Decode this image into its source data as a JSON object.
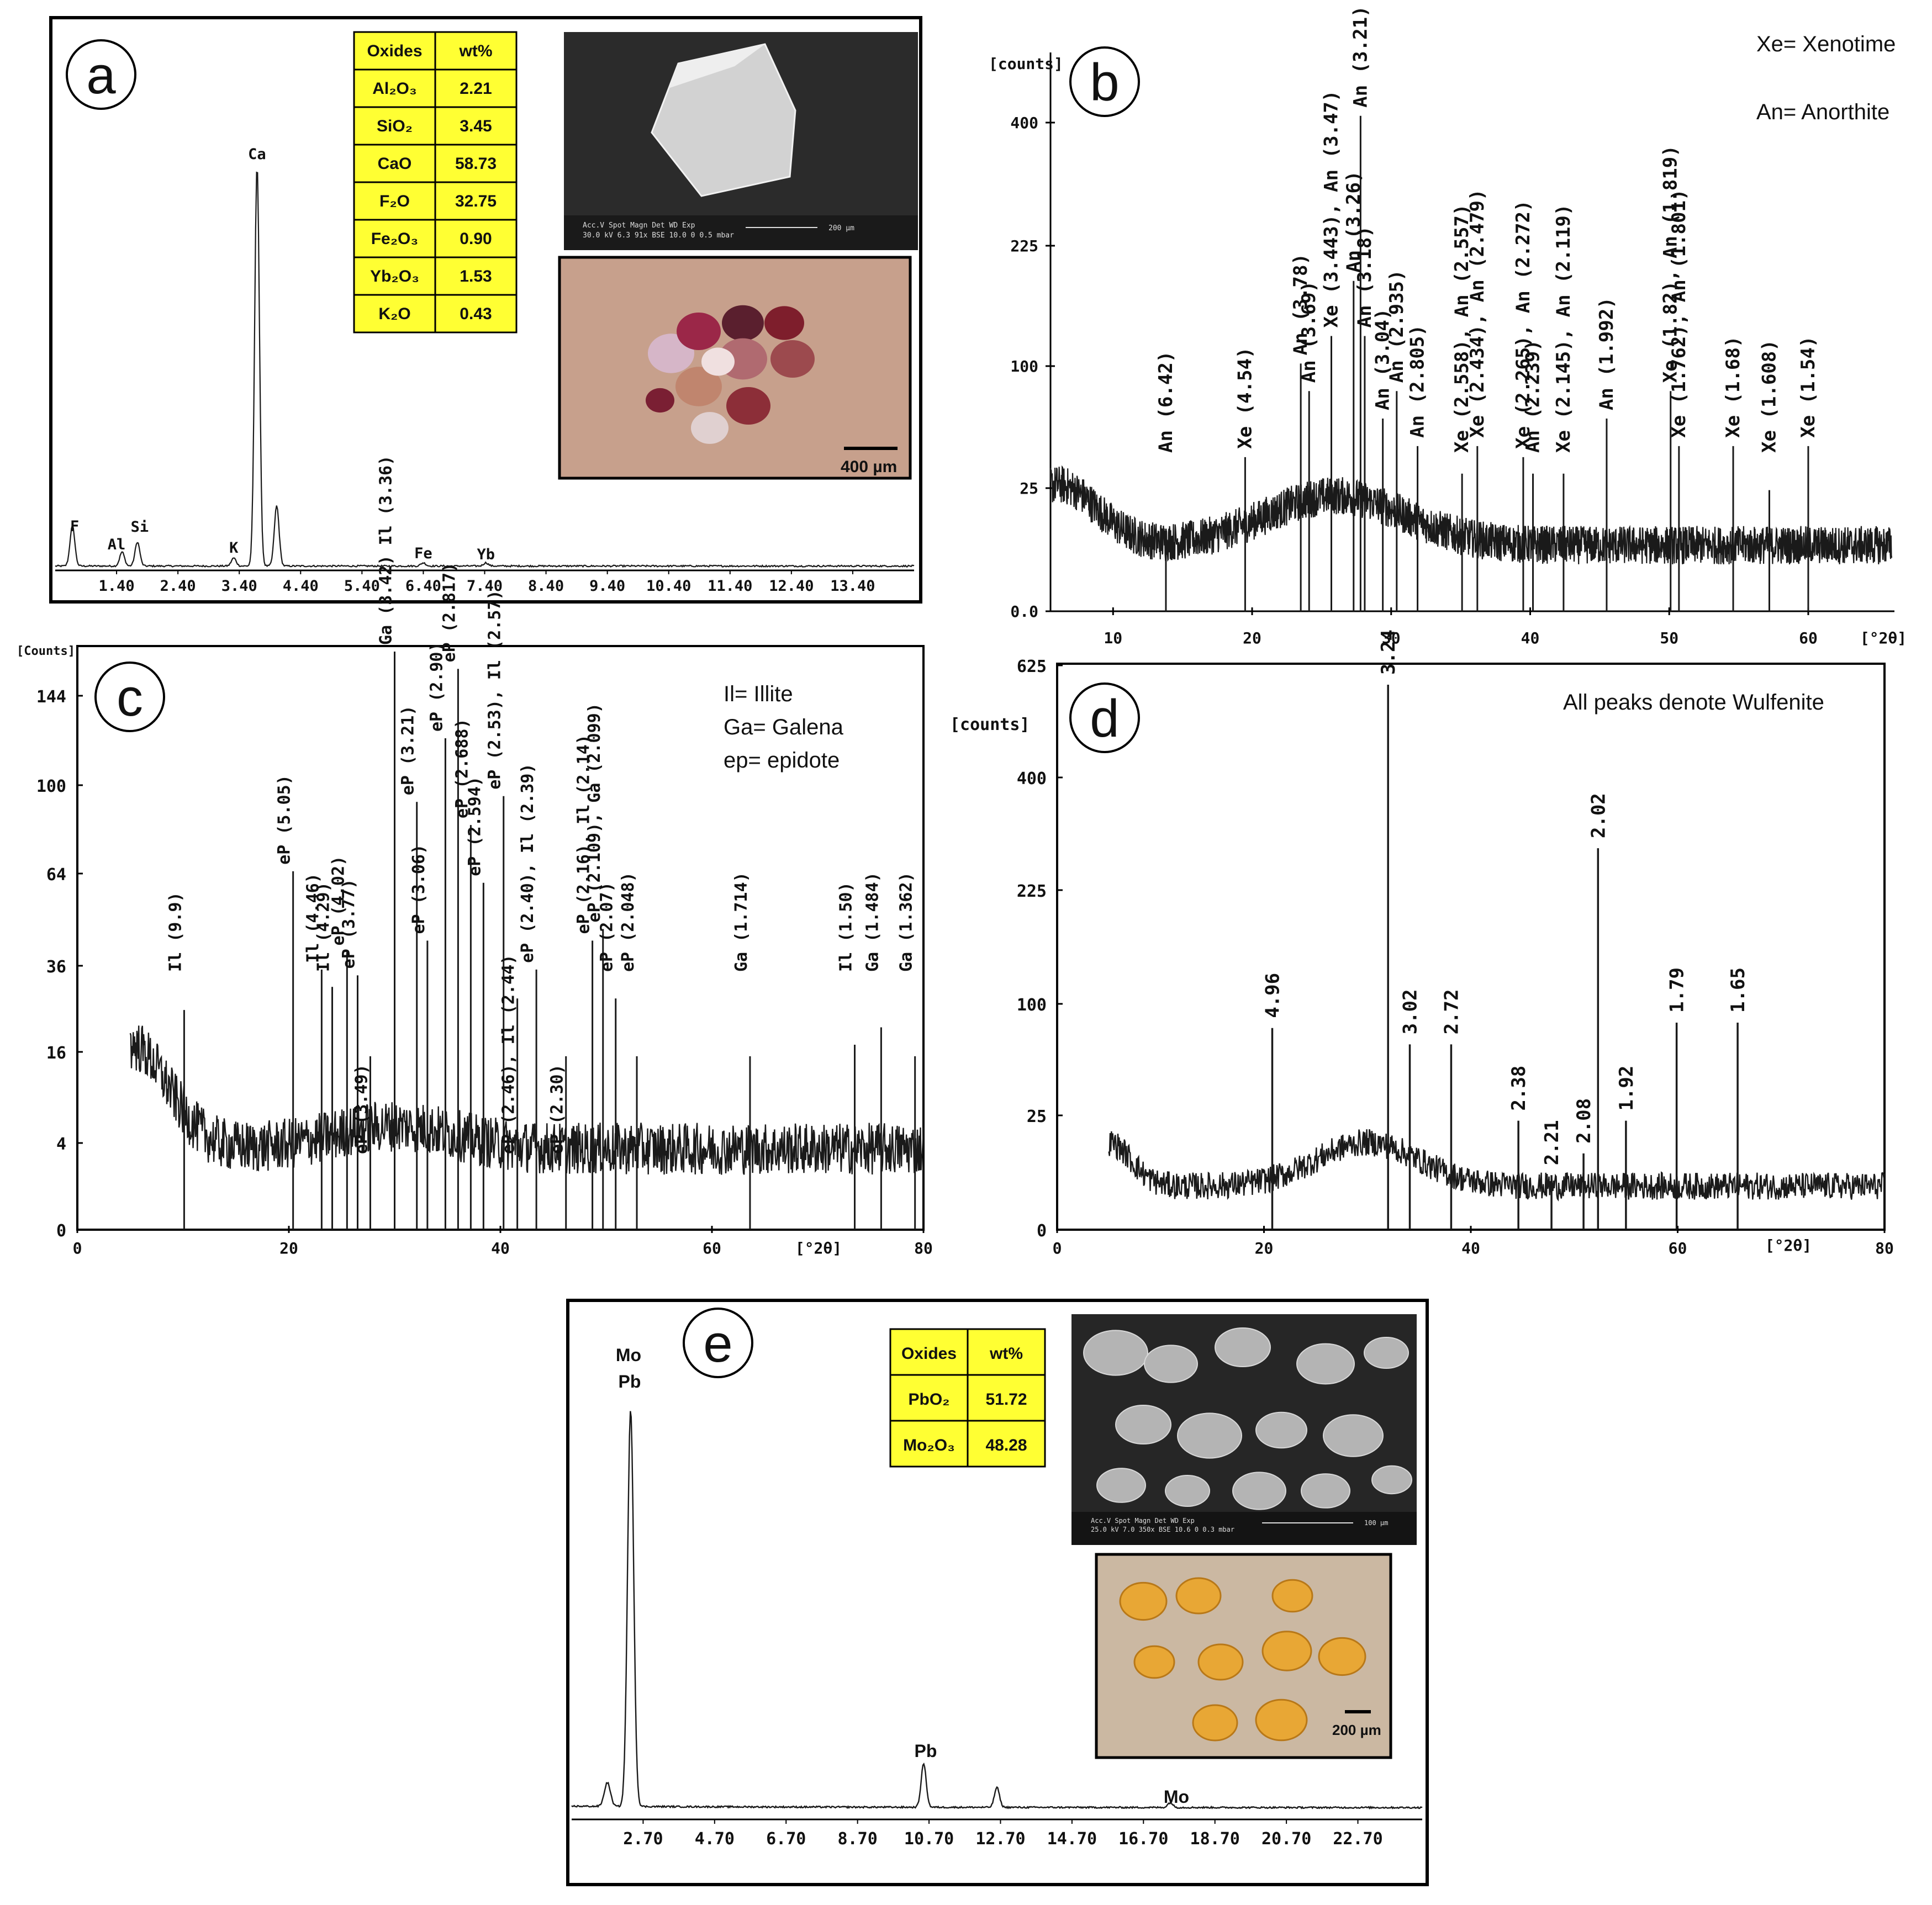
{
  "chart_data": [
    {
      "panel": "a",
      "type": "line",
      "spectrum": "EDS",
      "x_ticks": [
        "1.40",
        "2.40",
        "3.40",
        "4.40",
        "5.40",
        "6.40",
        "7.40",
        "8.40",
        "9.40",
        "10.40",
        "11.40",
        "12.40",
        "13.40"
      ],
      "xlim": [
        0.4,
        14.4
      ],
      "peaks": [
        {
          "label": "F",
          "x": 0.68,
          "h": 0.1
        },
        {
          "label": "Al",
          "x": 1.49,
          "h": 0.035
        },
        {
          "label": "Si",
          "x": 1.74,
          "h": 0.06
        },
        {
          "label": "K",
          "x": 3.31,
          "h": 0.02
        },
        {
          "label": "Ca",
          "x": 3.69,
          "h": 1.0
        },
        {
          "label": "",
          "x": 4.01,
          "h": 0.15
        },
        {
          "label": "Fe",
          "x": 6.4,
          "h": 0.008
        },
        {
          "label": "Yb",
          "x": 7.42,
          "h": 0.008
        }
      ],
      "table": {
        "headers": [
          "Oxides",
          "wt%"
        ],
        "rows": [
          [
            "Al₂O₃",
            "2.21"
          ],
          [
            "SiO₂",
            "3.45"
          ],
          [
            "CaO",
            "58.73"
          ],
          [
            "F₂O",
            "32.75"
          ],
          [
            "Fe₂O₃",
            "0.90"
          ],
          [
            "Yb₂O₃",
            "1.53"
          ],
          [
            "K₂O",
            "0.43"
          ]
        ]
      },
      "sem_caption": [
        "Acc.V  Spot Magn   Det  WD  Exp",
        "30.0 kV 6.3  91x    BSE 10.0  0    0.5 mbar",
        "200 µm"
      ],
      "scale_bar": "400 µm"
    },
    {
      "panel": "b",
      "type": "line",
      "spectrum": "XRD",
      "y_unit": "[counts]",
      "y_ticks": [
        "400",
        "225",
        "100",
        "25",
        "0.0"
      ],
      "x_ticks": [
        "10",
        "20",
        "30",
        "40",
        "50",
        "60"
      ],
      "x_unit": "[°2θ]",
      "xlim": [
        5.5,
        66
      ],
      "legend": [
        "Xe= Xenotime",
        "An= Anorthite"
      ],
      "peaks": [
        {
          "label": "An (6.42)",
          "x": 13.8,
          "h": 0.15
        },
        {
          "label": "Xe (4.54)",
          "x": 19.5,
          "h": 0.28
        },
        {
          "label": "An (3.78)",
          "x": 23.5,
          "h": 0.45
        },
        {
          "label": "An (3.69)",
          "x": 24.1,
          "h": 0.4
        },
        {
          "label": "Xe (3.443), An (3.47)",
          "x": 25.7,
          "h": 0.5
        },
        {
          "label": "An (3.26)",
          "x": 27.3,
          "h": 0.6
        },
        {
          "label": "An (3.21)",
          "x": 27.8,
          "h": 0.9
        },
        {
          "label": "An (3.18)",
          "x": 28.1,
          "h": 0.5
        },
        {
          "label": "An (3.04)",
          "x": 29.4,
          "h": 0.35
        },
        {
          "label": "An (2.935)",
          "x": 30.4,
          "h": 0.4
        },
        {
          "label": "An (2.805)",
          "x": 31.9,
          "h": 0.3
        },
        {
          "label": "Xe (2.558), An (2.557)",
          "x": 35.1,
          "h": 0.25
        },
        {
          "label": "Xe (2.434), An (2.479)",
          "x": 36.2,
          "h": 0.3
        },
        {
          "label": "Xe (2.265), An (2.272)",
          "x": 39.5,
          "h": 0.28
        },
        {
          "label": "An (2.239)",
          "x": 40.2,
          "h": 0.25
        },
        {
          "label": "Xe (2.145), An (2.119)",
          "x": 42.4,
          "h": 0.25
        },
        {
          "label": "An (1.992)",
          "x": 45.5,
          "h": 0.35
        },
        {
          "label": "Xe (1.82), An (1.819)",
          "x": 50.1,
          "h": 0.4
        },
        {
          "label": "Xe (1.762), An (1.801)",
          "x": 50.7,
          "h": 0.3
        },
        {
          "label": "Xe (1.68)",
          "x": 54.6,
          "h": 0.3
        },
        {
          "label": "Xe (1.608)",
          "x": 57.2,
          "h": 0.22
        },
        {
          "label": "Xe (1.54)",
          "x": 60.0,
          "h": 0.3
        }
      ]
    },
    {
      "panel": "c",
      "type": "line",
      "spectrum": "XRD",
      "y_unit": "[Counts]",
      "y_ticks": [
        "144",
        "100",
        "64",
        "36",
        "16",
        "4",
        "0"
      ],
      "x_ticks": [
        "0",
        "20",
        "40",
        "60",
        "80"
      ],
      "x_unit": "[°2θ]",
      "xlim": [
        0,
        80
      ],
      "legend": [
        "Il= Illite",
        "Ga= Galena",
        "ep= epidote"
      ],
      "peaks": [
        {
          "label": "Il (9.9)",
          "x": 10.1,
          "h": 0.38,
          "pos": "above"
        },
        {
          "label": "eP (5.05)",
          "x": 20.4,
          "h": 0.62,
          "pos": "above"
        },
        {
          "label": "Il (4.46)",
          "x": 23.1,
          "h": 0.45,
          "pos": "above"
        },
        {
          "label": "Il (4.29)",
          "x": 24.1,
          "h": 0.42,
          "pos": "above"
        },
        {
          "label": "eP (4.02)",
          "x": 25.5,
          "h": 0.48,
          "pos": "above"
        },
        {
          "label": "eP (3.77)",
          "x": 26.5,
          "h": 0.44,
          "pos": "above"
        },
        {
          "label": "eP (3.49)",
          "x": 27.7,
          "h": 0.3,
          "pos": "below"
        },
        {
          "label": "Ga (3.42) Il (3.36)",
          "x": 30.0,
          "h": 1.0,
          "pos": "above"
        },
        {
          "label": "eP (3.21)",
          "x": 32.1,
          "h": 0.74,
          "pos": "above"
        },
        {
          "label": "eP (3.06)",
          "x": 33.1,
          "h": 0.5,
          "pos": "above"
        },
        {
          "label": "eP (2.90)",
          "x": 34.8,
          "h": 0.85,
          "pos": "above"
        },
        {
          "label": "eP (2.817)",
          "x": 36.0,
          "h": 0.97,
          "pos": "above"
        },
        {
          "label": "eP (2.688)",
          "x": 37.2,
          "h": 0.7,
          "pos": "above"
        },
        {
          "label": "eP (2.594)",
          "x": 38.4,
          "h": 0.6,
          "pos": "above"
        },
        {
          "label": "eP (2.53), Il (2.57)",
          "x": 40.3,
          "h": 0.75,
          "pos": "above"
        },
        {
          "label": "eP (2.46), Il (2.44)",
          "x": 41.6,
          "h": 0.4,
          "pos": "below"
        },
        {
          "label": "eP (2.40), Il (2.39)",
          "x": 43.4,
          "h": 0.45,
          "pos": "above"
        },
        {
          "label": "eP (2.30)",
          "x": 46.2,
          "h": 0.3,
          "pos": "below"
        },
        {
          "label": "eP (2.16), Il (2.14)",
          "x": 48.7,
          "h": 0.5,
          "pos": "above"
        },
        {
          "label": "eP (2.109), Ga (2.099)",
          "x": 49.7,
          "h": 0.52,
          "pos": "above"
        },
        {
          "label": "eP (2.07)",
          "x": 50.9,
          "h": 0.4,
          "pos": "above"
        },
        {
          "label": "eP (2.048)",
          "x": 52.9,
          "h": 0.3,
          "pos": "above"
        },
        {
          "label": "Ga (1.714)",
          "x": 63.6,
          "h": 0.3,
          "pos": "above"
        },
        {
          "label": "Il (1.50)",
          "x": 73.5,
          "h": 0.32,
          "pos": "above"
        },
        {
          "label": "Ga (1.484)",
          "x": 76.0,
          "h": 0.35,
          "pos": "above"
        },
        {
          "label": "Ga (1.362)",
          "x": 79.2,
          "h": 0.3,
          "pos": "above"
        }
      ]
    },
    {
      "panel": "d",
      "type": "line",
      "spectrum": "XRD",
      "y_unit": "[counts]",
      "y_ticks": [
        "625",
        "400",
        "225",
        "100",
        "25",
        "0"
      ],
      "x_ticks": [
        "0",
        "20",
        "40",
        "60",
        "80"
      ],
      "x_unit": "[°2θ]",
      "xlim": [
        0,
        80
      ],
      "legend": [
        "All peaks denote Wulfenite"
      ],
      "peaks": [
        {
          "label": "4.96",
          "x": 20.8,
          "h": 0.37
        },
        {
          "label": "3.24",
          "x": 32.0,
          "h": 1.0
        },
        {
          "label": "3.02",
          "x": 34.1,
          "h": 0.34
        },
        {
          "label": "2.72",
          "x": 38.1,
          "h": 0.34
        },
        {
          "label": "2.38",
          "x": 44.6,
          "h": 0.2
        },
        {
          "label": "2.21",
          "x": 47.8,
          "h": 0.1
        },
        {
          "label": "2.08",
          "x": 50.9,
          "h": 0.14
        },
        {
          "label": "2.02",
          "x": 52.3,
          "h": 0.7
        },
        {
          "label": "1.92",
          "x": 55.0,
          "h": 0.2
        },
        {
          "label": "1.79",
          "x": 59.9,
          "h": 0.38
        },
        {
          "label": "1.65",
          "x": 65.8,
          "h": 0.38
        }
      ]
    },
    {
      "panel": "e",
      "type": "line",
      "spectrum": "EDS",
      "x_ticks": [
        "2.70",
        "4.70",
        "6.70",
        "8.70",
        "10.70",
        "12.70",
        "14.70",
        "16.70",
        "18.70",
        "20.70",
        "22.70"
      ],
      "xlim": [
        0.7,
        24.5
      ],
      "peaks": [
        {
          "label": "",
          "x": 1.7,
          "h": 0.06
        },
        {
          "label": "Mo\nPb",
          "x": 2.35,
          "h": 1.0
        },
        {
          "label": "Pb",
          "x": 10.55,
          "h": 0.11
        },
        {
          "label": "",
          "x": 12.6,
          "h": 0.05
        },
        {
          "label": "Mo",
          "x": 17.45,
          "h": 0.012
        }
      ],
      "table": {
        "headers": [
          "Oxides",
          "wt%"
        ],
        "rows": [
          [
            "PbO₂",
            "51.72"
          ],
          [
            "Mo₂O₃",
            "48.28"
          ]
        ]
      },
      "sem_caption": [
        "Acc.V  Spot Magn  Det  WD  Exp",
        "25.0 kV 7.0  350x  BSE 10.6  0    0.3 mbar",
        "100 µm"
      ],
      "scale_bar": "200 µm"
    }
  ],
  "colors": {
    "line": "#1a1a1a",
    "table_fill": "#ffff33",
    "frame": "#000000"
  }
}
